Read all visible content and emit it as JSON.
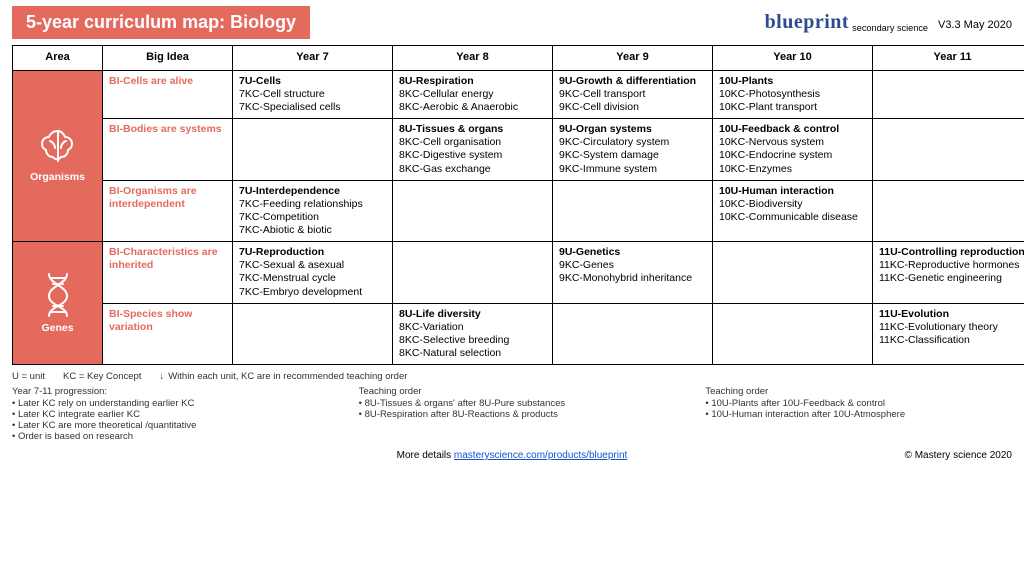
{
  "header": {
    "title": "5-year curriculum map: Biology",
    "brand": "blueprint",
    "brand_sub": "secondary science",
    "version": "V3.3 May 2020"
  },
  "columns": [
    "Area",
    "Big Idea",
    "Year 7",
    "Year 8",
    "Year 9",
    "Year 10",
    "Year 11"
  ],
  "areas": [
    {
      "name": "Organisms",
      "icon": "brain"
    },
    {
      "name": "Genes",
      "icon": "dna"
    }
  ],
  "rows": [
    {
      "big": "BI-Cells are alive",
      "y7": {
        "t": "7U-Cells",
        "k": [
          "7KC-Cell structure",
          "7KC-Specialised cells"
        ]
      },
      "y8": {
        "t": "8U-Respiration",
        "k": [
          "8KC-Cellular energy",
          "8KC-Aerobic & Anaerobic"
        ]
      },
      "y9": {
        "t": "9U-Growth & differentiation",
        "k": [
          "9KC-Cell transport",
          "9KC-Cell division"
        ]
      },
      "y10": {
        "t": "10U-Plants",
        "k": [
          "10KC-Photosynthesis",
          "10KC-Plant transport"
        ]
      },
      "y11": null
    },
    {
      "big": "BI-Bodies are systems",
      "y7": null,
      "y8": {
        "t": "8U-Tissues & organs",
        "k": [
          "8KC-Cell organisation",
          "8KC-Digestive system",
          "8KC-Gas exchange"
        ]
      },
      "y9": {
        "t": "9U-Organ systems",
        "k": [
          "9KC-Circulatory system",
          "9KC-System damage",
          "9KC-Immune system"
        ]
      },
      "y10": {
        "t": "10U-Feedback & control",
        "k": [
          "10KC-Nervous system",
          "10KC-Endocrine system",
          "10KC-Enzymes"
        ]
      },
      "y11": null
    },
    {
      "big": "BI-Organisms are interdependent",
      "y7": {
        "t": "7U-Interdependence",
        "k": [
          "7KC-Feeding relationships",
          "7KC-Competition",
          "7KC-Abiotic & biotic"
        ]
      },
      "y8": null,
      "y9": null,
      "y10": {
        "t": "10U-Human interaction",
        "k": [
          "10KC-Biodiversity",
          "10KC-Communicable disease"
        ]
      },
      "y11": null
    },
    {
      "big": "BI-Characteristics are inherited",
      "y7": {
        "t": "7U-Reproduction",
        "k": [
          "7KC-Sexual & asexual",
          "7KC-Menstrual cycle",
          "7KC-Embryo development"
        ]
      },
      "y8": null,
      "y9": {
        "t": "9U-Genetics",
        "k": [
          "9KC-Genes",
          "9KC-Monohybrid inheritance"
        ]
      },
      "y10": null,
      "y11": {
        "t": "11U-Controlling reproduction",
        "k": [
          "11KC-Reproductive hormones",
          "11KC-Genetic engineering"
        ]
      }
    },
    {
      "big": "BI-Species show variation",
      "y7": null,
      "y8": {
        "t": "8U-Life diversity",
        "k": [
          "8KC-Variation",
          "8KC-Selective breeding",
          "8KC-Natural selection"
        ]
      },
      "y9": null,
      "y10": null,
      "y11": {
        "t": "11U-Evolution",
        "k": [
          "11KC-Evolutionary theory",
          "11KC-Classification"
        ]
      }
    }
  ],
  "legend": {
    "u": "U = unit",
    "kc": "KC = Key Concept",
    "order": "Within each unit, KC are in recommended teaching order"
  },
  "notes": {
    "col1": {
      "head": "Year 7-11 progression:",
      "items": [
        "Later KC rely on understanding earlier KC",
        "Later KC integrate earlier KC",
        "Later KC are more theoretical /quantitative",
        "Order is based on research"
      ]
    },
    "col2": {
      "head": "Teaching order",
      "items": [
        "8U-Tissues & organs' after 8U-Pure substances",
        "8U-Respiration after 8U-Reactions & products"
      ]
    },
    "col3": {
      "head": "Teaching order",
      "items": [
        "10U-Plants after 10U-Feedback & control",
        "10U-Human interaction after 10U-Atmosphere"
      ]
    }
  },
  "footer": {
    "more": "More details ",
    "link": "masteryscience.com/products/blueprint",
    "copyright": "© Mastery science 2020"
  },
  "colors": {
    "accent": "#e46a5e",
    "brand": "#2d4b8e",
    "link": "#1155cc"
  }
}
